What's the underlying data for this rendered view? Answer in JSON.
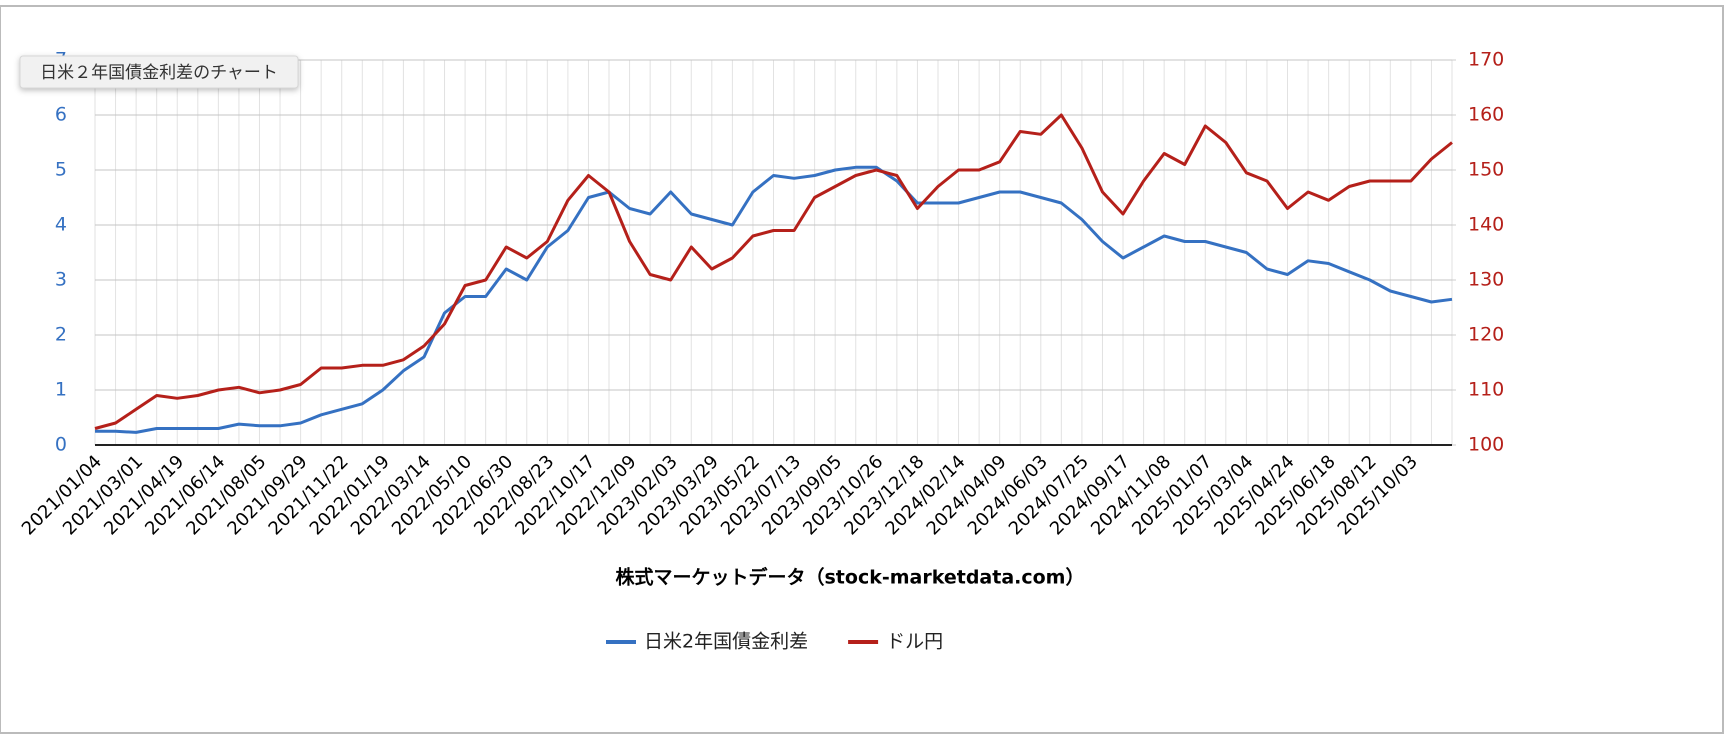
{
  "chart_data": {
    "type": "line",
    "tooltip": "日米２年国債金利差のチャート",
    "x_label": "株式マーケットデータ（stock-marketdata.com）",
    "x": [
      "2021/01/04",
      null,
      "2021/03/01",
      null,
      "2021/04/19",
      null,
      "2021/06/14",
      null,
      "2021/08/05",
      null,
      "2021/09/29",
      null,
      "2021/11/22",
      null,
      "2022/01/19",
      null,
      "2022/03/14",
      null,
      "2022/05/10",
      null,
      "2022/06/30",
      null,
      "2022/08/23",
      null,
      "2022/10/17",
      null,
      "2022/12/09",
      null,
      "2023/02/03",
      null,
      "2023/03/29",
      null,
      "2023/05/22",
      null,
      "2023/07/13",
      null,
      "2023/09/05",
      null,
      "2023/10/26",
      null,
      "2023/12/18",
      null,
      "2024/02/14",
      null,
      "2024/04/09",
      null,
      "2024/06/03",
      null,
      "2024/07/25",
      null,
      "2024/09/17",
      null,
      "2024/11/08",
      null,
      "2025/01/07",
      null,
      "2025/03/04",
      null,
      "2025/04/24",
      null,
      "2025/06/18",
      null,
      "2025/08/12",
      null,
      "2025/10/03",
      null,
      null
    ],
    "series": [
      {
        "name": "日米2年国債金利差",
        "color": "#3571c2",
        "axis": "y",
        "values": [
          0.25,
          0.25,
          0.23,
          0.3,
          0.3,
          0.3,
          0.3,
          0.38,
          0.35,
          0.35,
          0.4,
          0.55,
          0.65,
          0.75,
          1.0,
          1.35,
          1.6,
          2.4,
          2.7,
          2.7,
          3.2,
          3.0,
          3.6,
          3.9,
          4.5,
          4.6,
          4.3,
          4.2,
          4.6,
          4.2,
          4.1,
          4.0,
          4.6,
          4.9,
          4.85,
          4.9,
          5.0,
          5.05,
          5.05,
          4.8,
          4.4,
          4.4,
          4.4,
          4.5,
          4.6,
          4.6,
          4.5,
          4.4,
          4.1,
          3.7,
          3.4,
          3.6,
          3.8,
          3.7,
          3.7,
          3.6,
          3.5,
          3.2,
          3.1,
          3.35,
          3.3,
          3.15,
          3.0,
          2.8,
          2.7,
          2.6,
          2.65
        ]
      },
      {
        "name": "ドル円",
        "color": "#b5201a",
        "axis": "y2",
        "values": [
          103,
          104,
          106.5,
          109,
          108.5,
          109,
          110,
          110.5,
          109.5,
          110,
          111,
          114,
          114,
          114.5,
          114.5,
          115.5,
          118,
          122,
          129,
          130,
          136,
          134,
          137,
          144.5,
          149,
          146,
          137,
          131,
          130,
          136,
          132,
          134,
          138,
          139,
          139,
          145,
          147,
          149,
          150,
          149,
          143,
          147,
          150,
          150,
          151.5,
          157,
          156.5,
          160,
          154,
          146,
          142,
          148,
          153,
          151,
          158,
          155,
          149.5,
          148,
          143,
          146,
          144.5,
          147,
          148,
          148,
          148,
          152,
          155
        ]
      }
    ],
    "ylim": [
      0,
      7
    ],
    "yticks": [
      0,
      1,
      2,
      3,
      4,
      5,
      6,
      7
    ],
    "y2lim": [
      100,
      170
    ],
    "y2ticks": [
      100,
      110,
      120,
      130,
      140,
      150,
      160,
      170
    ],
    "grid": true,
    "legend": "bottom"
  }
}
